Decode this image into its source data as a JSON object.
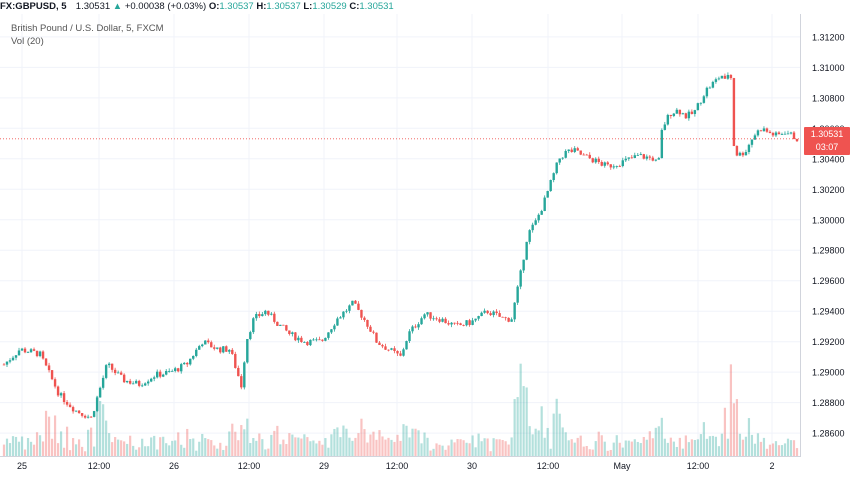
{
  "header": {
    "symbol": "FX:GBPUSD, 5",
    "last": "1.30531",
    "arrow": "▲",
    "change": "+0.00038 (+0.03%)",
    "o_label": "O:",
    "o_value": "1.30537",
    "h_label": "H:",
    "h_value": "1.30537",
    "l_label": "L:",
    "l_value": "1.30529",
    "c_label": "C:",
    "c_value": "1.30531"
  },
  "legend": {
    "title": "British Pound / U.S. Dollar, 5, FXCM",
    "volume": "Vol (20)"
  },
  "price_tag": {
    "price": "1.30531",
    "countdown": "03:07"
  },
  "colors": {
    "up": "#26a69a",
    "down": "#ef5350",
    "grid": "#f0f3fa",
    "line": "#ef5350"
  },
  "chart_data": {
    "type": "candlestick",
    "interval": "5m",
    "y_ticks": [
      "1.31200",
      "1.31000",
      "1.30800",
      "1.30600",
      "1.30400",
      "1.30200",
      "1.30000",
      "1.29800",
      "1.29600",
      "1.29400",
      "1.29200",
      "1.29000",
      "1.28800",
      "1.28600"
    ],
    "ylim": [
      1.2845,
      1.3135
    ],
    "x_ticks": [
      "25",
      "12:00",
      "26",
      "12:00",
      "29",
      "12:00",
      "30",
      "12:00",
      "May",
      "12:00",
      "2"
    ],
    "current_price": 1.30531,
    "price_path": [
      [
        0,
        1.2905
      ],
      [
        0.02,
        1.2915
      ],
      [
        0.045,
        1.2912
      ],
      [
        0.07,
        1.2885
      ],
      [
        0.09,
        1.2875
      ],
      [
        0.11,
        1.287
      ],
      [
        0.13,
        1.2905
      ],
      [
        0.15,
        1.2895
      ],
      [
        0.17,
        1.2892
      ],
      [
        0.19,
        1.2898
      ],
      [
        0.21,
        1.29
      ],
      [
        0.23,
        1.2905
      ],
      [
        0.25,
        1.292
      ],
      [
        0.27,
        1.2915
      ],
      [
        0.285,
        1.2915
      ],
      [
        0.3,
        1.289
      ],
      [
        0.305,
        1.292
      ],
      [
        0.315,
        1.2935
      ],
      [
        0.33,
        1.294
      ],
      [
        0.345,
        1.2932
      ],
      [
        0.36,
        1.2925
      ],
      [
        0.38,
        1.292
      ],
      [
        0.4,
        1.292
      ],
      [
        0.42,
        1.2935
      ],
      [
        0.44,
        1.2945
      ],
      [
        0.45,
        1.2938
      ],
      [
        0.46,
        1.293
      ],
      [
        0.47,
        1.292
      ],
      [
        0.485,
        1.2915
      ],
      [
        0.5,
        1.291
      ],
      [
        0.51,
        1.2925
      ],
      [
        0.53,
        1.2938
      ],
      [
        0.55,
        1.2935
      ],
      [
        0.57,
        1.293
      ],
      [
        0.59,
        1.2933
      ],
      [
        0.61,
        1.294
      ],
      [
        0.63,
        1.2935
      ],
      [
        0.64,
        1.2935
      ],
      [
        0.65,
        1.296
      ],
      [
        0.66,
        1.299
      ],
      [
        0.67,
        1.2998
      ],
      [
        0.68,
        1.301
      ],
      [
        0.69,
        1.3025
      ],
      [
        0.7,
        1.304
      ],
      [
        0.71,
        1.3045
      ],
      [
        0.72,
        1.3045
      ],
      [
        0.73,
        1.3042
      ],
      [
        0.74,
        1.304
      ],
      [
        0.76,
        1.3035
      ],
      [
        0.78,
        1.3038
      ],
      [
        0.8,
        1.3042
      ],
      [
        0.82,
        1.304
      ],
      [
        0.825,
        1.3035
      ],
      [
        0.83,
        1.306
      ],
      [
        0.84,
        1.307
      ],
      [
        0.85,
        1.3072
      ],
      [
        0.86,
        1.3068
      ],
      [
        0.87,
        1.307
      ],
      [
        0.875,
        1.3075
      ],
      [
        0.885,
        1.3085
      ],
      [
        0.895,
        1.309
      ],
      [
        0.905,
        1.3095
      ],
      [
        0.91,
        1.309
      ],
      [
        0.915,
        1.31
      ],
      [
        0.918,
        1.3088
      ],
      [
        0.92,
        1.305
      ],
      [
        0.925,
        1.3042
      ],
      [
        0.935,
        1.3045
      ],
      [
        0.945,
        1.3055
      ],
      [
        0.955,
        1.306
      ],
      [
        0.965,
        1.3057
      ],
      [
        0.975,
        1.3055
      ],
      [
        0.985,
        1.3058
      ],
      [
        1.0,
        1.30531
      ]
    ]
  }
}
